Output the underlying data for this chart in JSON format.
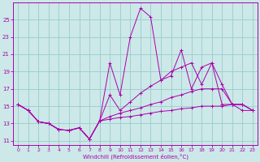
{
  "xlabel": "Windchill (Refroidissement éolien,°C)",
  "bg_color": "#cce8e8",
  "line_color": "#aa00aa",
  "grid_color": "#99cccc",
  "lines": [
    {
      "x": [
        0,
        1,
        2,
        3,
        4,
        5,
        6,
        7,
        8,
        9,
        10,
        11,
        12,
        13,
        14,
        15,
        16,
        17,
        18,
        19,
        20,
        21,
        22,
        23
      ],
      "y": [
        15.2,
        14.5,
        13.2,
        13.0,
        12.3,
        12.2,
        12.5,
        11.2,
        13.3,
        20.0,
        16.3,
        23.0,
        26.3,
        25.3,
        18.0,
        18.5,
        21.5,
        17.0,
        19.5,
        20.0,
        15.2,
        15.2,
        14.5,
        14.5
      ]
    },
    {
      "x": [
        0,
        1,
        2,
        3,
        4,
        5,
        6,
        7,
        8,
        9,
        10,
        11,
        12,
        13,
        14,
        15,
        16,
        17,
        18,
        19,
        20,
        21,
        22,
        23
      ],
      "y": [
        15.2,
        14.5,
        13.2,
        13.0,
        12.3,
        12.2,
        12.5,
        11.2,
        13.3,
        16.3,
        14.5,
        15.5,
        16.5,
        17.3,
        18.0,
        19.0,
        19.5,
        20.0,
        17.5,
        20.0,
        17.5,
        15.2,
        15.2,
        14.5
      ]
    },
    {
      "x": [
        0,
        1,
        2,
        3,
        4,
        5,
        6,
        7,
        8,
        9,
        10,
        11,
        12,
        13,
        14,
        15,
        16,
        17,
        18,
        19,
        20,
        21,
        22,
        23
      ],
      "y": [
        15.2,
        14.5,
        13.2,
        13.0,
        12.3,
        12.2,
        12.5,
        11.2,
        13.3,
        13.8,
        14.2,
        14.5,
        14.8,
        15.2,
        15.5,
        16.0,
        16.3,
        16.7,
        17.0,
        17.0,
        17.0,
        15.2,
        15.2,
        14.5
      ]
    },
    {
      "x": [
        0,
        1,
        2,
        3,
        4,
        5,
        6,
        7,
        8,
        9,
        10,
        11,
        12,
        13,
        14,
        15,
        16,
        17,
        18,
        19,
        20,
        21,
        22,
        23
      ],
      "y": [
        15.2,
        14.5,
        13.2,
        13.0,
        12.3,
        12.2,
        12.5,
        11.2,
        13.3,
        13.5,
        13.7,
        13.8,
        14.0,
        14.2,
        14.4,
        14.5,
        14.7,
        14.8,
        15.0,
        15.0,
        15.0,
        15.2,
        15.2,
        14.5
      ]
    }
  ],
  "xlim": [
    -0.5,
    23.5
  ],
  "ylim": [
    10.5,
    27.0
  ],
  "yticks": [
    11,
    13,
    15,
    17,
    19,
    21,
    23,
    25
  ],
  "xticks": [
    0,
    1,
    2,
    3,
    4,
    5,
    6,
    7,
    8,
    9,
    10,
    11,
    12,
    13,
    14,
    15,
    16,
    17,
    18,
    19,
    20,
    21,
    22,
    23
  ]
}
